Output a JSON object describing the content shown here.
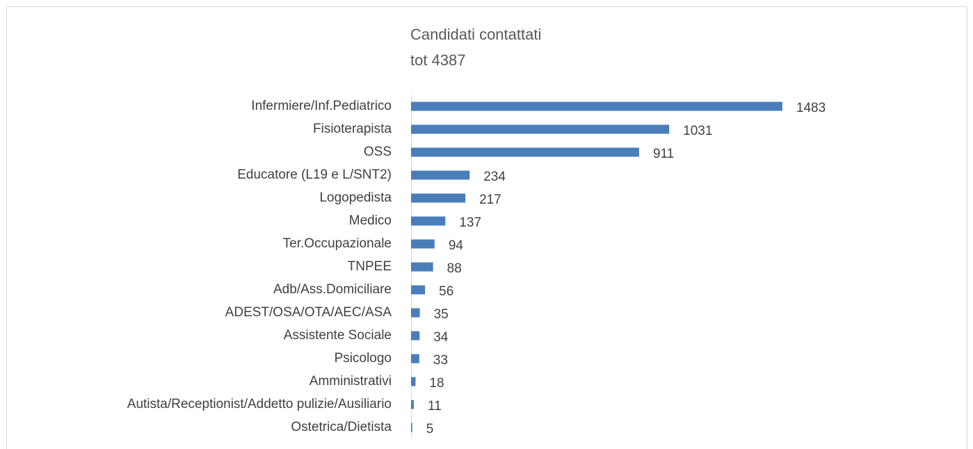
{
  "chart_data": {
    "type": "bar",
    "orientation": "horizontal",
    "title": "Candidati contattati",
    "subtitle": "tot 4387",
    "categories": [
      "Infermiere/Inf.Pediatrico",
      "Fisioterapista",
      "OSS",
      "Educatore (L19 e L/SNT2)",
      "Logopedista",
      "Medico",
      "Ter.Occupazionale",
      "TNPEE",
      "Adb/Ass.Domiciliare",
      "ADEST/OSA/OTA/AEC/ASA",
      "Assistente Sociale",
      "Psicologo",
      "Amministrativi",
      "Autista/Receptionist/Addetto pulizie/Ausiliario",
      "Ostetrica/Dietista"
    ],
    "values": [
      1483,
      1031,
      911,
      234,
      217,
      137,
      94,
      88,
      56,
      35,
      34,
      33,
      18,
      11,
      5
    ],
    "color": "#4a7ebb",
    "xlim": [
      0,
      1600
    ]
  }
}
